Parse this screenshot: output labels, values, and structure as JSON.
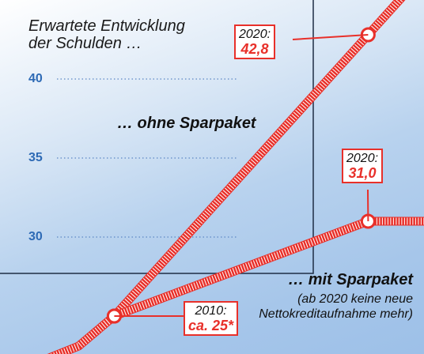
{
  "chart_data": {
    "type": "line",
    "title": "Erwartete Entwicklung der Schulden …",
    "note": "(ab 2020 keine neue Nettokreditaufnahme mehr)",
    "x": [
      {
        "value": 2010,
        "label": "2010:"
      },
      {
        "value": 2020,
        "label": "2020:"
      }
    ],
    "series": [
      {
        "name": "… ohne Sparpaket",
        "color": "#e8302a",
        "values": [
          25,
          42.8
        ],
        "value_labels": [
          "ca. 25*",
          "42,8"
        ]
      },
      {
        "name": "… mit Sparpaket",
        "color": "#e8302a",
        "values": [
          25,
          31.0
        ],
        "value_labels": [
          null,
          "31,0"
        ]
      }
    ],
    "xlim": [
      2005.5,
      2022.2
    ],
    "ylim": [
      22.6,
      45
    ],
    "yticks": [
      30,
      35,
      40
    ],
    "grid": true
  }
}
